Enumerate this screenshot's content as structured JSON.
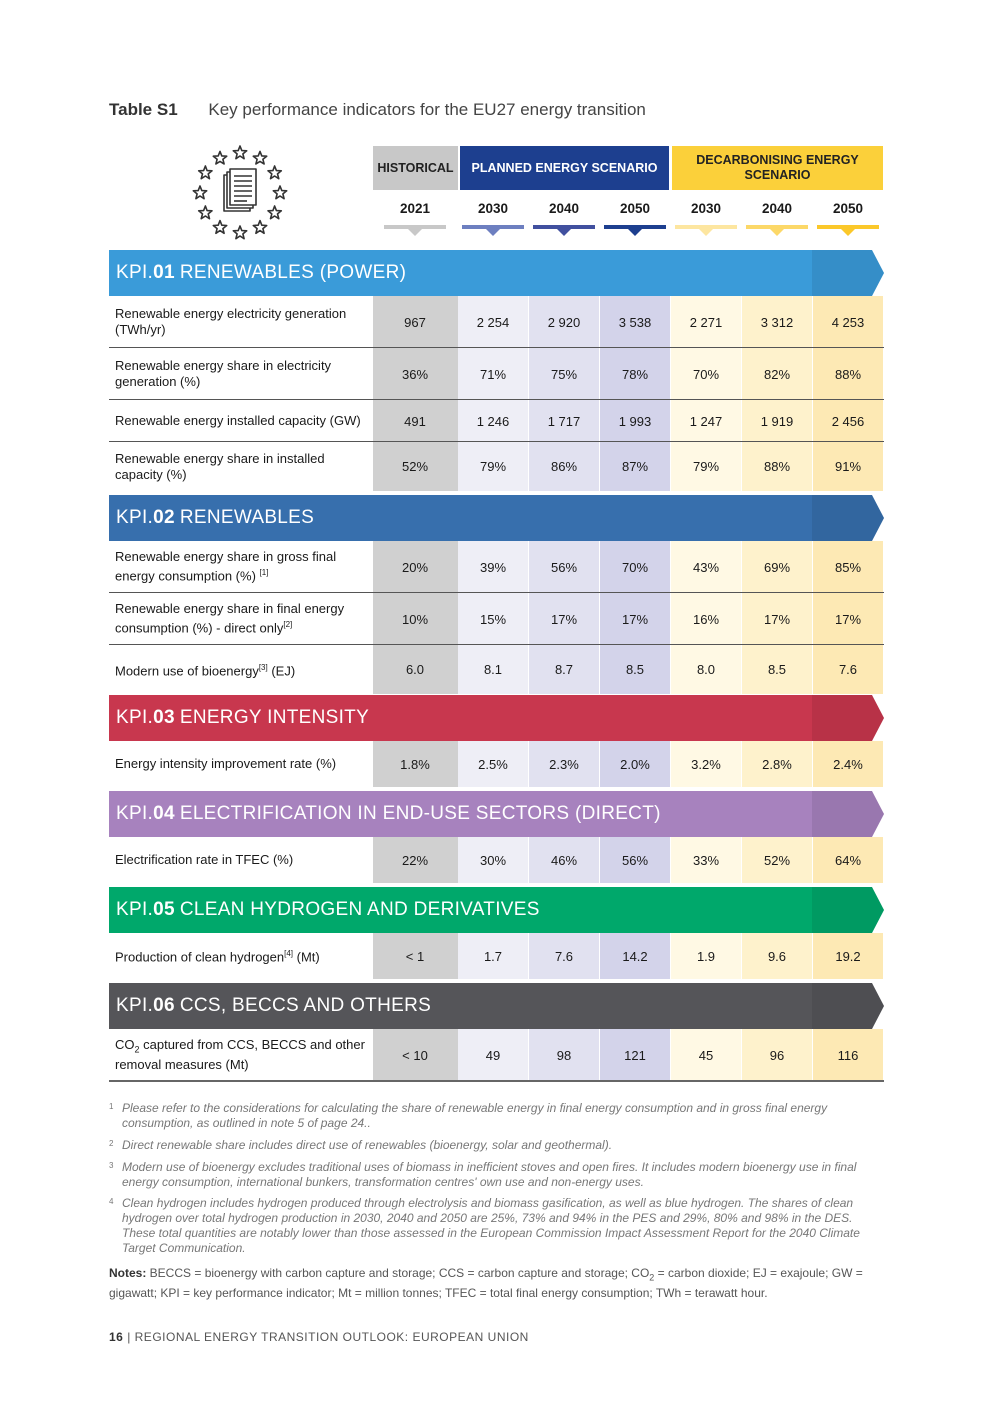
{
  "title": {
    "label": "Table S1",
    "text": "Key performance indicators for the EU27 energy transition"
  },
  "headers": {
    "historical": "HISTORICAL",
    "planned": "PLANNED ENERGY SCENARIO",
    "decarbonising": "DECARBONISING ENERGY SCENARIO",
    "years": [
      "2021",
      "2030",
      "2040",
      "2050",
      "2030",
      "2040",
      "2050"
    ]
  },
  "colors": {
    "kpi01": "#3a9bd9",
    "kpi02": "#376fad",
    "kpi03": "#c8374e",
    "kpi04": "#a782be",
    "kpi05": "#00a86b",
    "kpi06": "#555559",
    "historical": "#c8c8c8",
    "planned": "#1d3f8f",
    "decarbonising": "#fbd03a"
  },
  "kpis": [
    {
      "prefix": "KPI.",
      "num": "01",
      "title": "RENEWABLES (POWER)",
      "rows": [
        {
          "label": "Renewable energy electricity generation (TWh/yr)",
          "values": [
            "967",
            "2 254",
            "2 920",
            "3 538",
            "2 271",
            "3 312",
            "4 253"
          ]
        },
        {
          "label": "Renewable energy share in electricity generation (%)",
          "values": [
            "36%",
            "71%",
            "75%",
            "78%",
            "70%",
            "82%",
            "88%"
          ]
        },
        {
          "label": "Renewable energy installed capacity (GW)",
          "values": [
            "491",
            "1 246",
            "1 717",
            "1 993",
            "1 247",
            "1 919",
            "2 456"
          ]
        },
        {
          "label": "Renewable energy share in installed capacity (%)",
          "values": [
            "52%",
            "79%",
            "86%",
            "87%",
            "79%",
            "88%",
            "91%"
          ]
        }
      ]
    },
    {
      "prefix": "KPI.",
      "num": "02",
      "title": "RENEWABLES",
      "rows": [
        {
          "label": "Renewable energy share in gross final energy consumption (%) ",
          "sup": "[1]",
          "values": [
            "20%",
            "39%",
            "56%",
            "70%",
            "43%",
            "69%",
            "85%"
          ]
        },
        {
          "label": "Renewable energy share in final energy consumption (%) - direct only",
          "sup": "[2]",
          "values": [
            "10%",
            "15%",
            "17%",
            "17%",
            "16%",
            "17%",
            "17%"
          ]
        },
        {
          "label": "Modern use of bioenergy",
          "sup": "[3]",
          "after": " (EJ)",
          "values": [
            "6.0",
            "8.1",
            "8.7",
            "8.5",
            "8.0",
            "8.5",
            "7.6"
          ]
        }
      ]
    },
    {
      "prefix": "KPI.",
      "num": "03",
      "title": "ENERGY INTENSITY",
      "rows": [
        {
          "label": "Energy intensity improvement rate (%)",
          "values": [
            "1.8%",
            "2.5%",
            "2.3%",
            "2.0%",
            "3.2%",
            "2.8%",
            "2.4%"
          ]
        }
      ]
    },
    {
      "prefix": "KPI.",
      "num": "04",
      "title": "ELECTRIFICATION IN END-USE SECTORS (DIRECT)",
      "rows": [
        {
          "label": "Electrification rate in TFEC (%)",
          "values": [
            "22%",
            "30%",
            "46%",
            "56%",
            "33%",
            "52%",
            "64%"
          ]
        }
      ]
    },
    {
      "prefix": "KPI.",
      "num": "05",
      "title": "CLEAN HYDROGEN AND DERIVATIVES",
      "rows": [
        {
          "label": "Production of clean hydrogen",
          "sup": "[4]",
          "after": " (Mt)",
          "values": [
            "< 1",
            "1.7",
            "7.6",
            "14.2",
            "1.9",
            "9.6",
            "19.2"
          ]
        }
      ]
    },
    {
      "prefix": "KPI.",
      "num": "06",
      "title": "CCS, BECCS AND OTHERS",
      "rows": [
        {
          "label": "CO",
          "sub": "2",
          "after": " captured from CCS, BECCS and other removal measures (Mt)",
          "values": [
            "< 10",
            "49",
            "98",
            "121",
            "45",
            "96",
            "116"
          ]
        }
      ]
    }
  ],
  "footnotes": [
    {
      "num": "1",
      "text": "Please refer to the considerations for calculating the share of renewable energy in final energy consumption and in gross final energy consumption, as outlined in note 5 of page 24.."
    },
    {
      "num": "2",
      "text": "Direct renewable share includes direct use of renewables (bioenergy, solar and geothermal)."
    },
    {
      "num": "3",
      "text": "Modern use of bioenergy excludes traditional uses of biomass in inefficient stoves and open fires. It includes modern bioenergy use in final energy consumption, international bunkers, transformation centres' own use and non-energy uses."
    },
    {
      "num": "4",
      "text": "Clean hydrogen includes hydrogen produced through electrolysis and biomass gasification, as well as blue hydrogen. The shares of clean hydrogen over total hydrogen production in 2030, 2040 and 2050 are 25%, 73% and 94% in the PES and 29%, 80% and 98% in the DES. These total quantities are notably lower than those assessed in the European Commission Impact Assessment Report for the 2040 Climate Target Communication."
    }
  ],
  "notes": {
    "label": "Notes:",
    "text_a": " BECCS = bioenergy with carbon capture and storage; CCS = carbon capture and storage; CO",
    "text_sub": "2",
    "text_b": " = carbon dioxide; EJ = exajoule; GW = gigawatt; KPI = key performance indicator; Mt = million tonnes; TFEC = total final energy consumption; TWh = terawatt hour."
  },
  "footer": {
    "page": "16",
    "text": " | REGIONAL ENERGY TRANSITION OUTLOOK: EUROPEAN UNION"
  }
}
